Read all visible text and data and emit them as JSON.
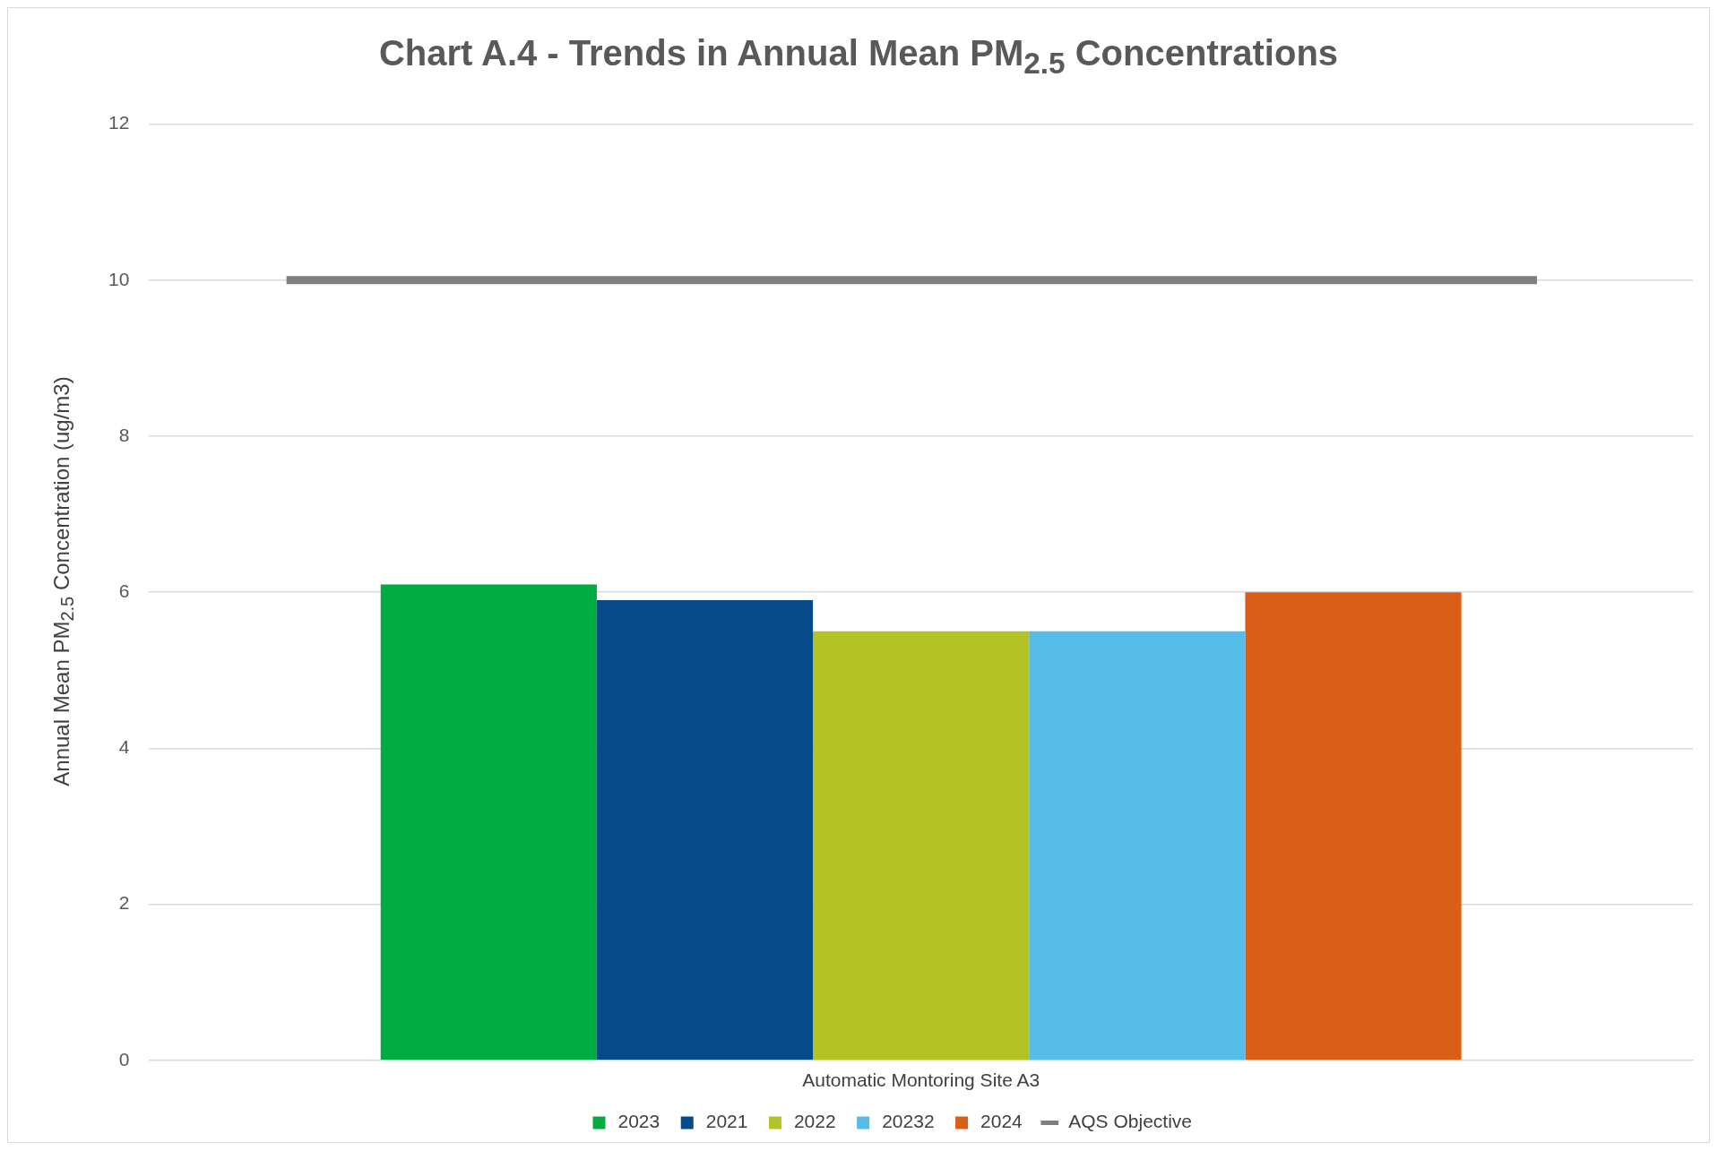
{
  "chart_data": {
    "type": "bar",
    "title": "Chart A.4 - Trends in Annual Mean PM$_{2.5}$ Concentrations",
    "ylabel": "Annual Mean PM$_{2.5}$ Concentration (ug/m3)",
    "categories": [
      "Automatic Montoring Site A3"
    ],
    "series": [
      {
        "name": "2023",
        "color": "#00ac41",
        "values": [
          6.1
        ]
      },
      {
        "name": "2021",
        "color": "#054b89",
        "values": [
          5.9
        ]
      },
      {
        "name": "2022",
        "color": "#b3c325",
        "values": [
          5.5
        ]
      },
      {
        "name": "20232",
        "color": "#56bce8",
        "values": [
          5.5
        ]
      },
      {
        "name": "2024",
        "color": "#da5e16",
        "values": [
          6.0
        ]
      }
    ],
    "ref_lines": [
      {
        "axis": "y",
        "value": 10,
        "label": "AQS Objective",
        "color": "#7f7f7f"
      }
    ],
    "ylim": [
      0,
      12
    ],
    "yticks": [
      0,
      2,
      4,
      6,
      8,
      10,
      12
    ],
    "grid": "y",
    "legend": "bottom"
  }
}
